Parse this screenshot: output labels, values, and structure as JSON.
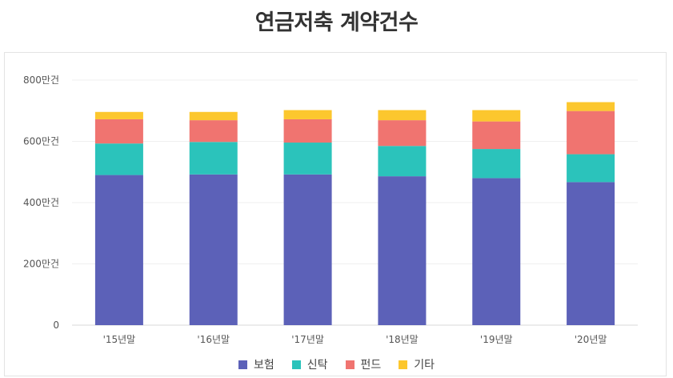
{
  "title": "연금저축 계약건수",
  "chart_data": {
    "type": "bar",
    "stacked": true,
    "title": "연금저축 계약건수",
    "unit": "만건",
    "categories": [
      "'15년말",
      "'16년말",
      "'17년말",
      "'18년말",
      "'19년말",
      "'20년말"
    ],
    "series": [
      {
        "name": "보험",
        "color": "#5c61b8",
        "values": [
          490,
          492,
          492,
          486,
          480,
          467
        ]
      },
      {
        "name": "신탁",
        "color": "#2bc3bb",
        "values": [
          103,
          106,
          104,
          99,
          95,
          91
        ]
      },
      {
        "name": "펀드",
        "color": "#f07470",
        "values": [
          79,
          71,
          76,
          84,
          90,
          141
        ]
      },
      {
        "name": "기타",
        "color": "#fcc72e",
        "values": [
          24,
          27,
          30,
          33,
          37,
          29
        ]
      }
    ],
    "yticks": [
      "0",
      "200만건",
      "400만건",
      "600만건",
      "800만건"
    ],
    "ylim": [
      0,
      800
    ],
    "grid": true,
    "legend_position": "bottom"
  }
}
